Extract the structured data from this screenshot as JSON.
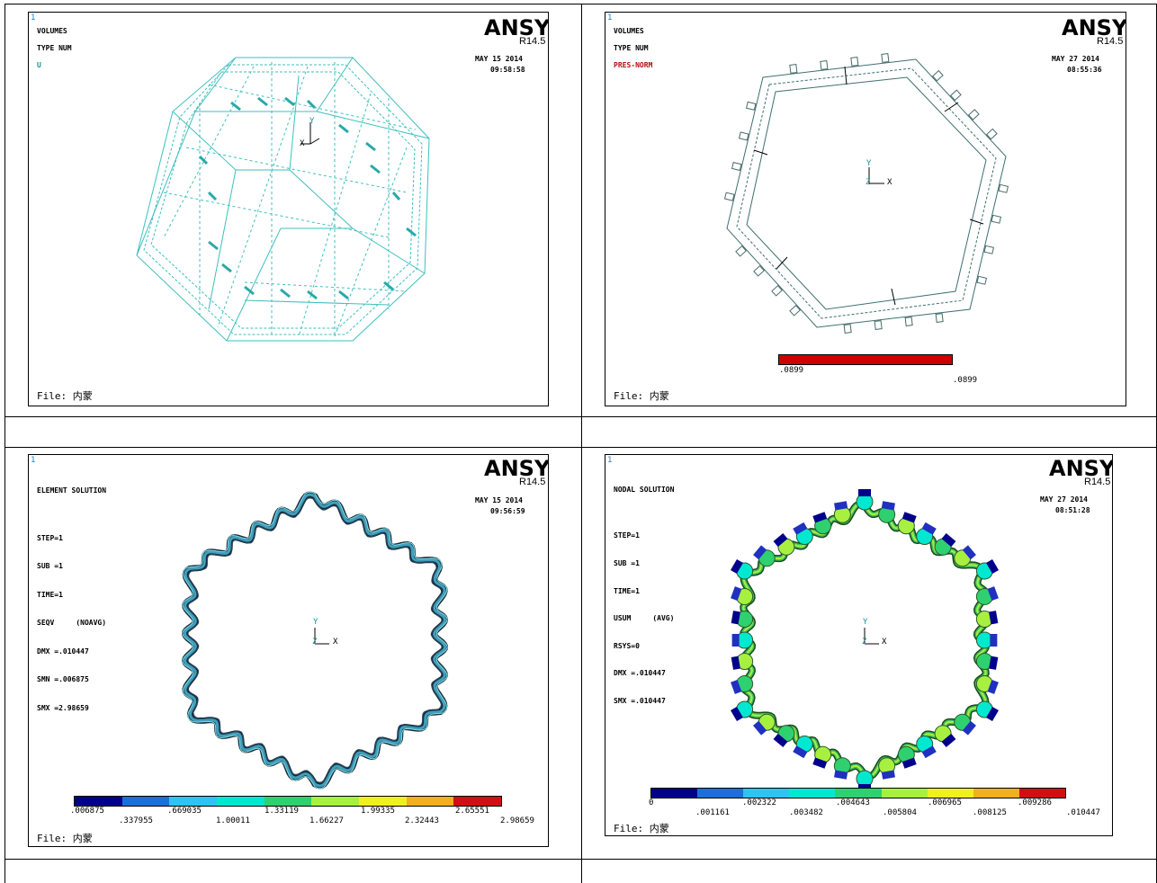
{
  "panels": [
    {
      "index": "1",
      "lines": [
        "VOLUMES",
        "TYPE NUM",
        "U"
      ],
      "logo": "ANSYS",
      "release": "R14.5",
      "date": "MAY 15 2014",
      "time": "09:58:58",
      "file": "File: 内蒙",
      "axis": {
        "y": "Y",
        "z": "Z",
        "x": "X"
      }
    },
    {
      "index": "1",
      "lines": [
        "VOLUMES",
        "TYPE NUM",
        "PRES-NORM"
      ],
      "logo": "ANSYS",
      "release": "R14.5",
      "date": "MAY 27 2014",
      "time": "08:55:36",
      "file": "File: 内蒙",
      "axis": {
        "y": "Y",
        "z": "Z",
        "x": "X"
      },
      "pressure": {
        "min": ".0899",
        "max": ".0899",
        "color": "#cc0000"
      }
    },
    {
      "index": "1",
      "lines": [
        "ELEMENT SOLUTION",
        "",
        "STEP=1",
        "SUB =1",
        "TIME=1",
        "SEQV     (NOAVG)",
        "DMX =.010447",
        "SMN =.006875",
        "SMX =2.98659"
      ],
      "logo": "ANSYS",
      "release": "R14.5",
      "date": "MAY 15 2014",
      "time": "09:56:59",
      "file": "File: 内蒙",
      "axis": {
        "y": "Y",
        "z": "Z",
        "x": "X"
      },
      "legend_top": [
        ".006875",
        ".669035",
        "1.33119",
        "1.99335",
        "2.65551"
      ],
      "legend_bottom": [
        ".337955",
        "1.00011",
        "1.66227",
        "2.32443",
        "2.98659"
      ]
    },
    {
      "index": "1",
      "lines": [
        "NODAL SOLUTION",
        "",
        "STEP=1",
        "SUB =1",
        "TIME=1",
        "USUM     (AVG)",
        "RSYS=0",
        "DMX =.010447",
        "SMX =.010447"
      ],
      "logo": "ANSYS",
      "release": "R14.5",
      "date": "MAY 27 2014",
      "time": "08:51:28",
      "file": "File: 内蒙",
      "axis": {
        "y": "Y",
        "z": "Z",
        "x": "X"
      },
      "legend_top": [
        "0",
        ".002322",
        ".004643",
        ".006965",
        ".009286"
      ],
      "legend_bottom": [
        ".001161",
        ".003482",
        ".005804",
        ".008125",
        ".010447"
      ]
    }
  ],
  "contour_colors": [
    "#00008b",
    "#1c6fd6",
    "#2ec3f0",
    "#00e8d0",
    "#2fd070",
    "#a8f040",
    "#f0f020",
    "#f0b020",
    "#d01010"
  ],
  "colors": {
    "mesh": "#3fbfbf",
    "outline": "#4a6a6a",
    "text_index": "#1c7fd0"
  }
}
